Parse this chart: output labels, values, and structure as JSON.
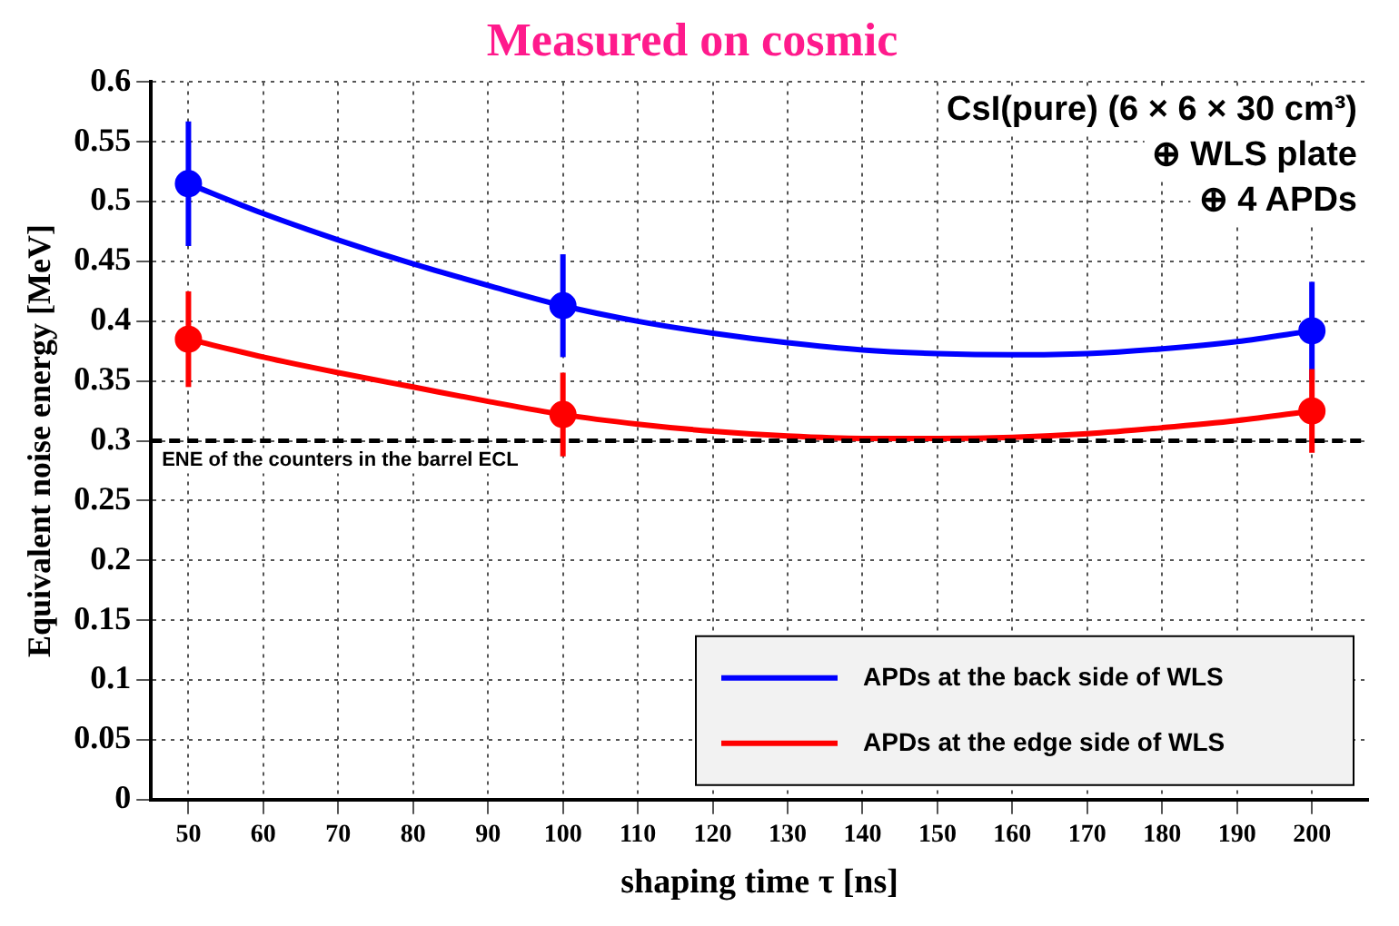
{
  "chart_data": {
    "type": "scatter",
    "title": "Measured on cosmic",
    "xlabel": "shaping time τ [ns]",
    "ylabel": "Equivalent noise energy [MeV]",
    "xlim": [
      45,
      207.5
    ],
    "xticks": [
      50,
      60,
      70,
      80,
      90,
      100,
      110,
      120,
      130,
      140,
      150,
      160,
      170,
      180,
      190,
      200
    ],
    "ylim": [
      0,
      0.6
    ],
    "yticks": [
      0,
      0.05,
      0.1,
      0.15,
      0.2,
      0.25,
      0.3,
      0.35,
      0.4,
      0.45,
      0.5,
      0.55,
      0.6
    ],
    "grid": true,
    "legend": "bottom right",
    "marker": "circle",
    "series": [
      {
        "name": "APDs at the back side of WLS",
        "color": "#0000ff",
        "x": [
          50,
          100,
          200
        ],
        "values": [
          0.515,
          0.413,
          0.392
        ],
        "errors": [
          0.052,
          0.043,
          0.041
        ]
      },
      {
        "name": "APDs at the edge side of WLS",
        "color": "#ff0000",
        "x": [
          50,
          100,
          200
        ],
        "values": [
          0.385,
          0.322,
          0.325
        ],
        "errors": [
          0.04,
          0.035,
          0.035
        ]
      },
      {
        "type": "line",
        "marker": "none",
        "color": "#0000ff",
        "x": [
          50,
          60,
          70,
          80,
          90,
          100,
          110,
          120,
          130,
          140,
          150,
          160,
          170,
          180,
          190,
          200
        ],
        "values": [
          0.515,
          0.49,
          0.468,
          0.448,
          0.43,
          0.413,
          0.4,
          0.39,
          0.382,
          0.376,
          0.373,
          0.372,
          0.373,
          0.377,
          0.383,
          0.392
        ]
      },
      {
        "type": "line",
        "marker": "none",
        "color": "#ff0000",
        "x": [
          50,
          60,
          70,
          80,
          90,
          100,
          110,
          120,
          130,
          140,
          150,
          160,
          170,
          180,
          190,
          200
        ],
        "values": [
          0.385,
          0.37,
          0.357,
          0.345,
          0.333,
          0.322,
          0.314,
          0.308,
          0.304,
          0.302,
          0.302,
          0.303,
          0.306,
          0.311,
          0.317,
          0.325
        ]
      }
    ],
    "ref_lines": [
      {
        "axis": "y",
        "value": 0.3,
        "label": "ENE of the counters in the barrel ECL",
        "color": "#000000",
        "line_style": "dashed"
      }
    ],
    "annotations": [
      "CsI(pure) (6 × 6 × 30 cm³)",
      "⊕ WLS plate",
      "⊕ 4 APDs"
    ]
  }
}
